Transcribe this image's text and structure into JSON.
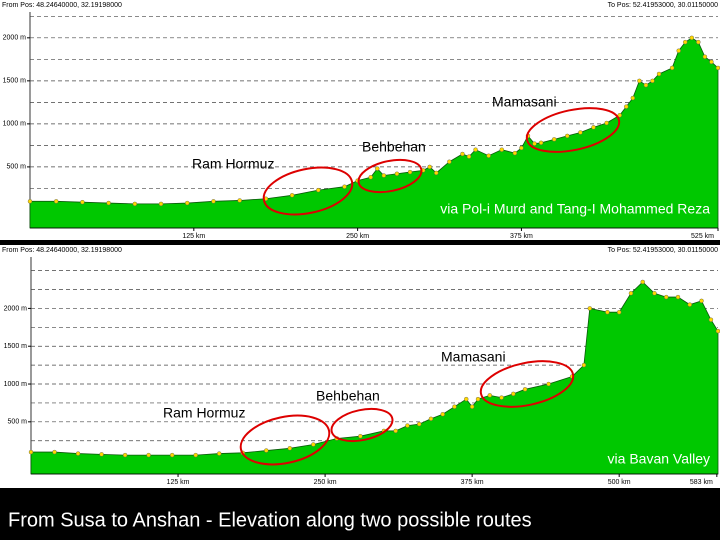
{
  "chart_data": [
    {
      "type": "area",
      "from_label": "From Pos: 48.24640000, 32.19198000",
      "to_label": "To Pos: 52.41953000, 30.01150000",
      "note": "via Pol-i Murd and Tang-I Mohammed Reza",
      "annotations": [
        "Ram Hormuz",
        "Behbehan",
        "Mamasani"
      ],
      "color": "#00c800",
      "marker_color": "#ffd800",
      "x": [
        0,
        20,
        40,
        60,
        80,
        100,
        120,
        140,
        160,
        180,
        200,
        220,
        240,
        250,
        260,
        265,
        270,
        280,
        290,
        300,
        305,
        310,
        320,
        330,
        335,
        340,
        350,
        360,
        370,
        375,
        380,
        385,
        390,
        400,
        410,
        420,
        430,
        440,
        450,
        455,
        460,
        465,
        470,
        475,
        480,
        490,
        495,
        500,
        505,
        510,
        515,
        520,
        525
      ],
      "values": [
        100,
        100,
        90,
        80,
        70,
        70,
        80,
        100,
        110,
        130,
        170,
        230,
        270,
        340,
        380,
        480,
        400,
        420,
        440,
        460,
        500,
        430,
        560,
        650,
        620,
        700,
        630,
        700,
        660,
        720,
        860,
        770,
        780,
        820,
        860,
        900,
        960,
        1010,
        1100,
        1200,
        1300,
        1500,
        1450,
        1500,
        1580,
        1650,
        1850,
        1950,
        2000,
        1950,
        1780,
        1720,
        1650
      ],
      "xlim": [
        0,
        525
      ],
      "xticks": [
        {
          "value": 125,
          "label": "125 km"
        },
        {
          "value": 250,
          "label": "250 km"
        },
        {
          "value": 375,
          "label": "375 km"
        },
        {
          "value": 525,
          "label": "525 km"
        }
      ],
      "ylim": [
        -210,
        2300
      ],
      "yticks": [
        {
          "value": 500,
          "label": "500 m"
        },
        {
          "value": 1000,
          "label": "1000 m"
        },
        {
          "value": 1500,
          "label": "1500 m"
        },
        {
          "value": 2000,
          "label": "2000 m"
        }
      ],
      "minor_yticks": [
        250,
        750,
        1250,
        1750,
        2250
      ],
      "grid": true
    },
    {
      "type": "area",
      "from_label": "From Pos: 48.24640000, 32.19198000",
      "to_label": "To Pos: 52.41953000, 30.01150000",
      "note": "via Bavan Valley",
      "annotations": [
        "Ram Hormuz",
        "Behbehan",
        "Mamasani"
      ],
      "color": "#00c800",
      "marker_color": "#ffd800",
      "x": [
        0,
        20,
        40,
        60,
        80,
        100,
        120,
        140,
        160,
        180,
        200,
        220,
        240,
        260,
        280,
        300,
        310,
        320,
        330,
        340,
        350,
        360,
        370,
        375,
        380,
        390,
        400,
        410,
        420,
        440,
        460,
        470,
        475,
        490,
        500,
        510,
        520,
        530,
        540,
        550,
        560,
        570,
        578,
        584
      ],
      "values": [
        100,
        100,
        80,
        70,
        60,
        60,
        60,
        60,
        80,
        90,
        120,
        150,
        200,
        280,
        310,
        380,
        380,
        450,
        470,
        540,
        600,
        700,
        800,
        700,
        800,
        850,
        820,
        870,
        930,
        1000,
        1100,
        1250,
        2000,
        1950,
        1950,
        2200,
        2350,
        2200,
        2150,
        2150,
        2050,
        2100,
        1850,
        1700
      ],
      "xlim": [
        0,
        584
      ],
      "xticks": [
        {
          "value": 125,
          "label": "125 km"
        },
        {
          "value": 250,
          "label": "250 km"
        },
        {
          "value": 375,
          "label": "375 km"
        },
        {
          "value": 500,
          "label": "500 km"
        },
        {
          "value": 583,
          "label": "583 km"
        }
      ],
      "ylim": [
        -190,
        2680
      ],
      "yticks": [
        {
          "value": 500,
          "label": "500 m"
        },
        {
          "value": 1000,
          "label": "1000 m"
        },
        {
          "value": 1500,
          "label": "1500 m"
        },
        {
          "value": 2000,
          "label": "2000 m"
        }
      ],
      "minor_yticks": [
        250,
        750,
        1250,
        1750,
        2250,
        2500
      ],
      "grid": true
    }
  ],
  "caption": "From Susa to Anshan - Elevation along two possible routes"
}
